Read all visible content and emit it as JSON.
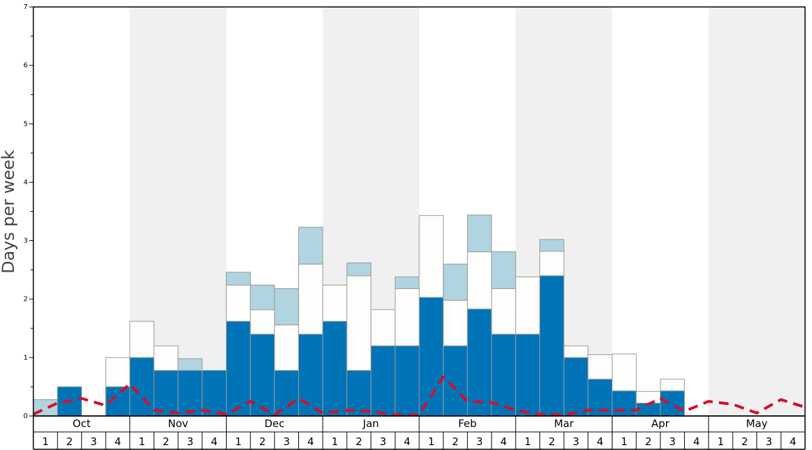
{
  "chart_data": {
    "type": "bar",
    "ylabel": "Days per week",
    "ylim": [
      0,
      7
    ],
    "yticks": [
      "0",
      "1",
      "2",
      "3",
      "4",
      "5",
      "6",
      "7"
    ],
    "months": [
      "Oct",
      "Nov",
      "Dec",
      "Jan",
      "Feb",
      "Mar",
      "Apr",
      "May"
    ],
    "week_labels": [
      "1",
      "2",
      "3",
      "4"
    ],
    "colors": {
      "series_a": "#0074b7",
      "series_b": "#fdfdfb",
      "series_c": "#b0d4e0",
      "average_line": "#d0102d",
      "band_shade": "#f0f0f0",
      "bar_stroke": "#999999"
    },
    "series": [
      {
        "values": [
          0,
          0.5,
          0,
          0.5,
          1.0,
          0.78,
          0.78,
          0.78,
          1.62,
          1.4,
          0.78,
          1.4,
          1.62,
          0.78,
          1.2,
          1.2,
          2.03,
          1.2,
          1.83,
          1.4,
          1.4,
          2.4,
          1.0,
          0.63,
          0.43,
          0.22,
          0.43,
          0,
          0,
          0,
          0,
          0
        ]
      },
      {
        "values": [
          0,
          0,
          0,
          0.5,
          0.62,
          0.42,
          0,
          0,
          0.62,
          0.42,
          0.78,
          1.2,
          0.62,
          1.62,
          0.62,
          0.98,
          1.4,
          0.78,
          0.98,
          0.78,
          0.98,
          0.42,
          0.2,
          0.42,
          0.63,
          0.2,
          0.2,
          0,
          0,
          0,
          0,
          0
        ]
      },
      {
        "values": [
          0.28,
          0,
          0,
          0,
          0,
          0,
          0.2,
          0,
          0.22,
          0.42,
          0.62,
          0.63,
          0,
          0.22,
          0,
          0.2,
          0,
          0.62,
          0.63,
          0.63,
          0,
          0.2,
          0,
          0,
          0,
          0,
          0,
          0,
          0,
          0,
          0,
          0
        ]
      },
      {
        "type": "line",
        "values": [
          0.03,
          0.22,
          0.3,
          0.18,
          0.55,
          0.1,
          0.05,
          0.1,
          0.03,
          0.25,
          0.02,
          0.3,
          0.05,
          0.1,
          0.08,
          0.02,
          0.02,
          0.67,
          0.25,
          0.23,
          0.1,
          0.03,
          0.02,
          0.1,
          0.1,
          0.1,
          0.3,
          0.08,
          0.25,
          0.2,
          0.05,
          0.28,
          0.15
        ]
      }
    ]
  }
}
